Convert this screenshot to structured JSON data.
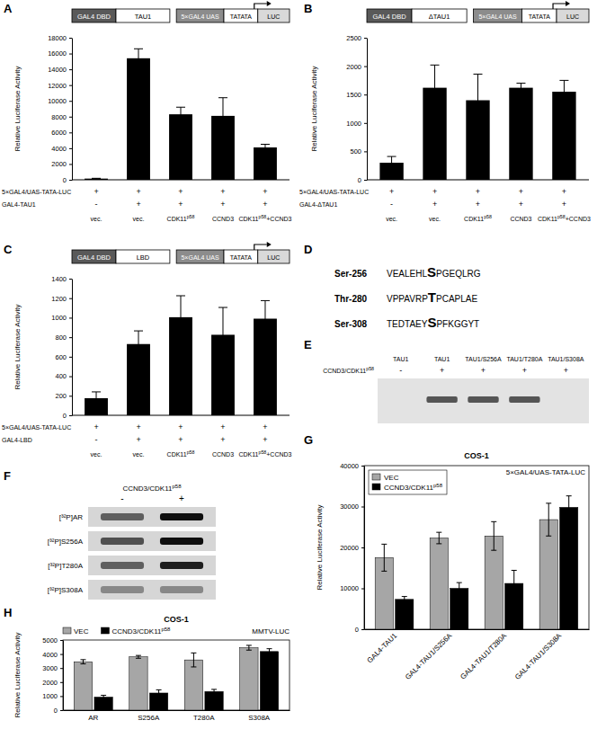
{
  "chart_data": [
    {
      "panel": "A",
      "type": "bar",
      "construct": [
        "GAL4 DBD",
        "TAU1"
      ],
      "reporter": [
        "5×GAL4 UAS",
        "TATATA",
        "LUC"
      ],
      "y_label": "Relative Luciferase Activity",
      "categories": [
        "vec.",
        "vec.",
        "CDK11p58",
        "CCND3",
        "CDK11p58+CCND3"
      ],
      "rows": [
        {
          "label": "5×GAL4/UAS-TATA-LUC",
          "values": [
            "+",
            "+",
            "+",
            "+",
            "+"
          ]
        },
        {
          "label": "GAL4-TAU1",
          "values": [
            "-",
            "+",
            "+",
            "+",
            "+"
          ]
        }
      ],
      "values": [
        150,
        15400,
        8300,
        8100,
        4100
      ],
      "errors": [
        40,
        1200,
        900,
        2300,
        400
      ],
      "color": "#000000",
      "ylim": [
        0,
        18000
      ],
      "yticks": [
        0,
        2000,
        4000,
        6000,
        8000,
        10000,
        12000,
        14000,
        16000,
        18000
      ]
    },
    {
      "panel": "B",
      "type": "bar",
      "construct": [
        "GAL4 DBD",
        "ΔTAU1"
      ],
      "reporter": [
        "5×GAL4 UAS",
        "TATATA",
        "LUC"
      ],
      "y_label": "Relative Luciferase Activity",
      "categories": [
        "vec.",
        "vec.",
        "CDK11p58",
        "CCND3",
        "CDK11p58+CCND3"
      ],
      "rows": [
        {
          "label": "5×GAL4/UAS-TATA-LUC",
          "values": [
            "+",
            "+",
            "+",
            "+",
            "+"
          ]
        },
        {
          "label": "GAL4-ΔTAU1",
          "values": [
            "-",
            "+",
            "+",
            "+",
            "+"
          ]
        }
      ],
      "values": [
        300,
        1620,
        1400,
        1620,
        1550
      ],
      "errors": [
        110,
        400,
        460,
        80,
        200
      ],
      "color": "#000000",
      "ylim": [
        0,
        2500
      ],
      "yticks": [
        0,
        500,
        1000,
        1500,
        2000,
        2500
      ]
    },
    {
      "panel": "C",
      "type": "bar",
      "construct": [
        "GAL4 DBD",
        "LBD"
      ],
      "reporter": [
        "5×GAL4 UAS",
        "TATATA",
        "LUC"
      ],
      "y_label": "Relative Luciferase Activity",
      "categories": [
        "vec.",
        "vec.",
        "CDK11p58",
        "CCND3",
        "CDK11p58+CCND3"
      ],
      "rows": [
        {
          "label": "5×GAL4/UAS-TATA-LUC",
          "values": [
            "+",
            "+",
            "+",
            "+",
            "+"
          ]
        },
        {
          "label": "GAL4-LBD",
          "values": [
            "-",
            "+",
            "+",
            "+",
            "+"
          ]
        }
      ],
      "values": [
        175,
        730,
        1005,
        825,
        990
      ],
      "errors": [
        65,
        135,
        220,
        280,
        185
      ],
      "color": "#000000",
      "ylim": [
        0,
        1400
      ],
      "yticks": [
        0,
        200,
        400,
        600,
        800,
        1000,
        1200,
        1400
      ]
    },
    {
      "panel": "G",
      "type": "bar",
      "title": "COS-1",
      "annotation": "5×GAL4/UAS-TATA-LUC",
      "y_label": "Relative Luciferase Activity",
      "categories": [
        "GAL4-TAU1",
        "GAL4-TAU1/S256A",
        "GAL4-TAU1/T280A",
        "GAL4-TAU1/S308A"
      ],
      "series": [
        {
          "name": "VEC",
          "color": "#a6a6a6",
          "values": [
            17500,
            22300,
            22800,
            26800
          ],
          "errors": [
            3300,
            1400,
            3500,
            4000
          ]
        },
        {
          "name": "CCND3/CDK11p58",
          "color": "#000000",
          "values": [
            7300,
            10000,
            11200,
            29800
          ],
          "errors": [
            700,
            1400,
            3200,
            2800
          ]
        }
      ],
      "ylim": [
        0,
        40000
      ],
      "yticks": [
        0,
        10000,
        20000,
        30000,
        40000
      ],
      "legend": "upper left"
    },
    {
      "panel": "H",
      "type": "bar",
      "title": "COS-1",
      "annotation": "MMTV-LUC",
      "y_label": "Relative Luciferase Activity",
      "categories": [
        "AR",
        "S256A",
        "T280A",
        "S308A"
      ],
      "series": [
        {
          "name": "VEC",
          "color": "#a6a6a6",
          "values": [
            3450,
            3800,
            3580,
            4450
          ],
          "errors": [
            150,
            100,
            500,
            170
          ]
        },
        {
          "name": "CCND3/CDK11p58",
          "color": "#000000",
          "values": [
            930,
            1220,
            1330,
            4180
          ],
          "errors": [
            130,
            230,
            150,
            200
          ]
        }
      ],
      "ylim": [
        0,
        5000
      ],
      "yticks": [
        0,
        1000,
        2000,
        3000,
        4000,
        5000
      ],
      "legend": "top"
    }
  ],
  "sequence_panel": {
    "panel": "D",
    "sites": [
      {
        "site": "Ser-256",
        "sequence": "VEALEHLSPGEQLRG"
      },
      {
        "site": "Thr-280",
        "sequence": "VPPAVRPTPCAPLAE"
      },
      {
        "site": "Ser-308",
        "sequence": "TEDTAEYSPFKGGYT"
      }
    ]
  },
  "blots": [
    {
      "panel": "E",
      "lanes": [
        "TAU1",
        "TAU1",
        "TAU1/S256A",
        "TAU1/T280A",
        "TAU1/S308A"
      ],
      "condition": {
        "label": "CCND3/CDK11p58",
        "values": [
          "-",
          "+",
          "+",
          "+",
          "+"
        ]
      },
      "band": [
        false,
        true,
        true,
        true,
        false
      ]
    },
    {
      "panel": "F",
      "condition": {
        "label": "CCND3/CDK11p58",
        "values": [
          "-",
          "+"
        ]
      },
      "rows": [
        {
          "label": "[³²P]AR",
          "intensity": [
            0.7,
            0.95
          ]
        },
        {
          "label": "[³²P]S256A",
          "intensity": [
            0.75,
            0.95
          ]
        },
        {
          "label": "[³²P]T280A",
          "intensity": [
            0.7,
            0.9
          ]
        },
        {
          "label": "[³²P]S308A",
          "intensity": [
            0.55,
            0.55
          ]
        }
      ]
    }
  ]
}
